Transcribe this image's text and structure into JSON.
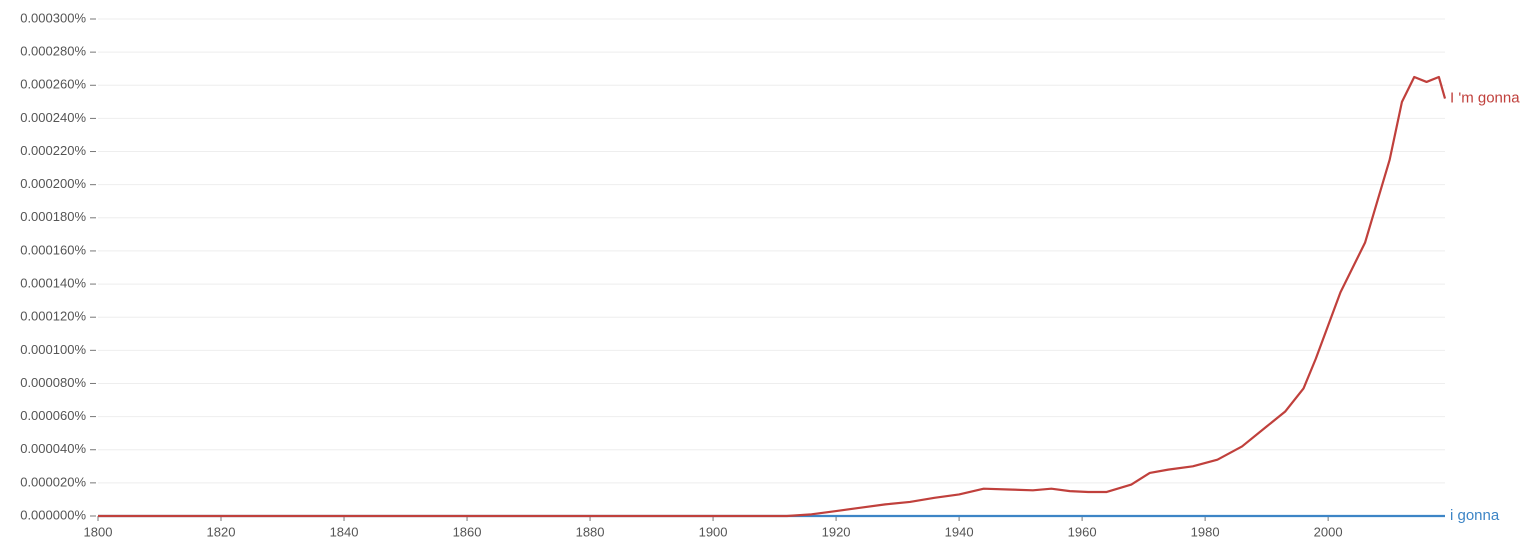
{
  "chart_data": {
    "type": "line",
    "x": [
      1800,
      1820,
      1840,
      1860,
      1880,
      1900,
      1912,
      1916,
      1920,
      1924,
      1928,
      1932,
      1936,
      1940,
      1944,
      1948,
      1952,
      1955,
      1958,
      1961,
      1964,
      1968,
      1971,
      1974,
      1978,
      1982,
      1986,
      1990,
      1993,
      1996,
      1998,
      2000,
      2002,
      2004,
      2006,
      2008,
      2010,
      2012,
      2014,
      2016,
      2018,
      2019
    ],
    "series": [
      {
        "name": "I 'm gonna",
        "color": "#c0403c",
        "values": [
          0,
          0,
          0,
          0,
          0,
          0,
          0,
          1e-06,
          3e-06,
          5e-06,
          7e-06,
          8.5e-06,
          1.1e-05,
          1.3e-05,
          1.65e-05,
          1.6e-05,
          1.55e-05,
          1.65e-05,
          1.5e-05,
          1.45e-05,
          1.45e-05,
          1.9e-05,
          2.6e-05,
          2.8e-05,
          3e-05,
          3.4e-05,
          4.2e-05,
          5.4e-05,
          6.3e-05,
          7.7e-05,
          9.5e-05,
          0.000115,
          0.000135,
          0.00015,
          0.000165,
          0.00019,
          0.000215,
          0.00025,
          0.000265,
          0.000262,
          0.000265,
          0.000252
        ]
      },
      {
        "name": "i gonna",
        "color": "#3d85c6",
        "values": [
          0,
          0,
          0,
          0,
          0,
          0,
          0,
          0,
          0,
          0,
          0,
          0,
          0,
          0,
          0,
          0,
          0,
          0,
          0,
          0,
          0,
          0,
          0,
          0,
          0,
          0,
          0,
          0,
          0,
          0,
          0,
          0,
          0,
          0,
          0,
          0,
          0,
          0,
          0,
          0,
          0,
          0
        ]
      }
    ],
    "xlim": [
      1800,
      2019
    ],
    "xticks": [
      1800,
      1820,
      1840,
      1860,
      1880,
      1900,
      1920,
      1940,
      1960,
      1980,
      2000
    ],
    "ylim": [
      0,
      0.0003
    ],
    "yticks": [
      {
        "value": 0,
        "label": "0.000000%"
      },
      {
        "value": 2e-05,
        "label": "0.000020%"
      },
      {
        "value": 4e-05,
        "label": "0.000040%"
      },
      {
        "value": 6e-05,
        "label": "0.000060%"
      },
      {
        "value": 8e-05,
        "label": "0.000080%"
      },
      {
        "value": 0.0001,
        "label": "0.000100%"
      },
      {
        "value": 0.00012,
        "label": "0.000120%"
      },
      {
        "value": 0.00014,
        "label": "0.000140%"
      },
      {
        "value": 0.00016,
        "label": "0.000160%"
      },
      {
        "value": 0.00018,
        "label": "0.000180%"
      },
      {
        "value": 0.0002,
        "label": "0.000200%"
      },
      {
        "value": 0.00022,
        "label": "0.000220%"
      },
      {
        "value": 0.00024,
        "label": "0.000240%"
      },
      {
        "value": 0.00026,
        "label": "0.000260%"
      },
      {
        "value": 0.00028,
        "label": "0.000280%"
      },
      {
        "value": 0.0003,
        "label": "0.000300%"
      }
    ],
    "grid": true
  }
}
